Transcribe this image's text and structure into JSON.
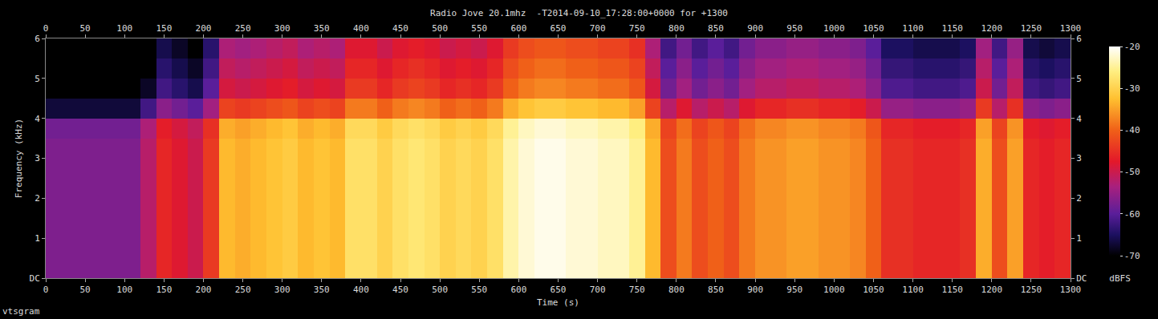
{
  "chart_data": {
    "type": "heatmap",
    "title": "Radio Jove 20.1mhz  -T2014-09-10_17:28:00+0000 for +1300",
    "x_label": "Time (s)",
    "y_label": "Frequency (kHz)",
    "annotation": "vtsgram",
    "x": [
      10,
      30,
      50,
      70,
      90,
      110,
      130,
      150,
      170,
      190,
      210,
      230,
      250,
      270,
      290,
      310,
      330,
      350,
      370,
      390,
      410,
      430,
      450,
      470,
      490,
      510,
      530,
      550,
      570,
      590,
      610,
      630,
      650,
      670,
      690,
      710,
      730,
      750,
      770,
      790,
      810,
      830,
      850,
      870,
      890,
      910,
      930,
      950,
      970,
      990,
      1010,
      1030,
      1050,
      1070,
      1090,
      1110,
      1130,
      1150,
      1170,
      1190,
      1210,
      1230,
      1250,
      1270,
      1290
    ],
    "y": [
      0.25,
      0.75,
      1.25,
      1.75,
      2.25,
      2.75,
      3.25,
      3.75,
      4.25,
      4.75,
      5.25,
      5.75
    ],
    "z": [
      [
        -57,
        -57,
        -57,
        -57,
        -57,
        -57,
        -52,
        -46,
        -48,
        -50,
        -44,
        -33,
        -34,
        -33,
        -32,
        -31,
        -33,
        -32,
        -33,
        -28,
        -28,
        -30,
        -28,
        -27,
        -28,
        -30,
        -29,
        -30,
        -28,
        -24,
        -22,
        -21,
        -21,
        -22,
        -22,
        -23,
        -23,
        -25,
        -33,
        -42,
        -38,
        -42,
        -40,
        -42,
        -38,
        -36,
        -36,
        -35,
        -35,
        -36,
        -36,
        -37,
        -40,
        -45,
        -45,
        -46,
        -46,
        -46,
        -45,
        -34,
        -42,
        -35,
        -46,
        -47,
        -46
      ],
      [
        -57,
        -57,
        -57,
        -57,
        -57,
        -57,
        -52,
        -46,
        -48,
        -50,
        -44,
        -33,
        -34,
        -33,
        -32,
        -31,
        -33,
        -32,
        -33,
        -28,
        -28,
        -30,
        -28,
        -27,
        -28,
        -30,
        -29,
        -30,
        -28,
        -24,
        -22,
        -21,
        -21,
        -22,
        -22,
        -23,
        -23,
        -25,
        -33,
        -42,
        -38,
        -42,
        -40,
        -42,
        -38,
        -36,
        -36,
        -35,
        -35,
        -36,
        -36,
        -37,
        -40,
        -45,
        -45,
        -46,
        -46,
        -46,
        -45,
        -34,
        -42,
        -35,
        -46,
        -47,
        -46
      ],
      [
        -57,
        -57,
        -57,
        -57,
        -57,
        -57,
        -52,
        -46,
        -48,
        -50,
        -44,
        -33,
        -34,
        -33,
        -32,
        -31,
        -33,
        -32,
        -33,
        -28,
        -28,
        -30,
        -28,
        -27,
        -28,
        -30,
        -29,
        -30,
        -28,
        -24,
        -22,
        -21,
        -21,
        -22,
        -22,
        -23,
        -23,
        -25,
        -33,
        -42,
        -38,
        -42,
        -40,
        -42,
        -38,
        -36,
        -36,
        -35,
        -35,
        -36,
        -36,
        -37,
        -40,
        -45,
        -45,
        -46,
        -46,
        -46,
        -45,
        -34,
        -42,
        -35,
        -46,
        -47,
        -46
      ],
      [
        -57,
        -57,
        -57,
        -57,
        -57,
        -57,
        -52,
        -46,
        -48,
        -50,
        -44,
        -33,
        -34,
        -33,
        -32,
        -31,
        -33,
        -32,
        -33,
        -28,
        -28,
        -30,
        -28,
        -27,
        -28,
        -30,
        -29,
        -30,
        -28,
        -24,
        -22,
        -21,
        -21,
        -22,
        -22,
        -23,
        -23,
        -25,
        -33,
        -42,
        -38,
        -42,
        -40,
        -42,
        -38,
        -36,
        -36,
        -35,
        -35,
        -36,
        -36,
        -37,
        -40,
        -45,
        -45,
        -46,
        -46,
        -46,
        -45,
        -34,
        -42,
        -35,
        -46,
        -47,
        -46
      ],
      [
        -57,
        -57,
        -57,
        -57,
        -57,
        -57,
        -52,
        -46,
        -48,
        -50,
        -44,
        -33,
        -34,
        -33,
        -32,
        -31,
        -33,
        -32,
        -33,
        -28,
        -28,
        -30,
        -28,
        -27,
        -28,
        -30,
        -29,
        -30,
        -28,
        -24,
        -22,
        -21,
        -21,
        -22,
        -22,
        -23,
        -23,
        -25,
        -33,
        -42,
        -38,
        -42,
        -40,
        -42,
        -38,
        -36,
        -36,
        -35,
        -35,
        -36,
        -36,
        -37,
        -40,
        -45,
        -45,
        -46,
        -46,
        -46,
        -45,
        -34,
        -42,
        -35,
        -46,
        -47,
        -46
      ],
      [
        -57,
        -57,
        -57,
        -57,
        -57,
        -57,
        -52,
        -46,
        -48,
        -50,
        -44,
        -33,
        -34,
        -33,
        -32,
        -31,
        -33,
        -32,
        -33,
        -28,
        -28,
        -30,
        -28,
        -27,
        -28,
        -30,
        -29,
        -30,
        -28,
        -24,
        -22,
        -21,
        -21,
        -22,
        -22,
        -23,
        -23,
        -25,
        -33,
        -42,
        -38,
        -42,
        -40,
        -42,
        -38,
        -36,
        -36,
        -35,
        -35,
        -36,
        -36,
        -37,
        -40,
        -45,
        -45,
        -46,
        -46,
        -46,
        -45,
        -34,
        -42,
        -35,
        -46,
        -47,
        -46
      ],
      [
        -57,
        -57,
        -57,
        -57,
        -57,
        -57,
        -52,
        -46,
        -48,
        -50,
        -44,
        -33,
        -34,
        -33,
        -32,
        -31,
        -33,
        -32,
        -33,
        -28,
        -28,
        -30,
        -28,
        -27,
        -28,
        -30,
        -29,
        -30,
        -28,
        -24,
        -22,
        -21,
        -21,
        -22,
        -22,
        -23,
        -23,
        -25,
        -33,
        -42,
        -38,
        -42,
        -40,
        -42,
        -38,
        -36,
        -36,
        -35,
        -35,
        -36,
        -36,
        -37,
        -40,
        -45,
        -45,
        -46,
        -46,
        -46,
        -45,
        -34,
        -42,
        -35,
        -46,
        -47,
        -46
      ],
      [
        -58,
        -58,
        -58,
        -58,
        -58,
        -58,
        -53,
        -47,
        -49,
        -51,
        -45,
        -34,
        -35,
        -34,
        -33,
        -32,
        -34,
        -33,
        -34,
        -29,
        -29,
        -31,
        -29,
        -28,
        -29,
        -31,
        -30,
        -31,
        -29,
        -25,
        -23,
        -22,
        -22,
        -23,
        -23,
        -24,
        -24,
        -26,
        -34,
        -43,
        -39,
        -43,
        -41,
        -43,
        -39,
        -37,
        -37,
        -36,
        -36,
        -37,
        -37,
        -38,
        -41,
        -46,
        -46,
        -47,
        -47,
        -47,
        -46,
        -35,
        -43,
        -36,
        -47,
        -48,
        -47
      ],
      [
        -67,
        -67,
        -67,
        -67,
        -67,
        -67,
        -62,
        -56,
        -58,
        -60,
        -54,
        -43,
        -44,
        -43,
        -42,
        -41,
        -43,
        -42,
        -43,
        -38,
        -38,
        -40,
        -38,
        -37,
        -38,
        -40,
        -39,
        -40,
        -38,
        -34,
        -32,
        -31,
        -31,
        -32,
        -32,
        -33,
        -33,
        -35,
        -43,
        -52,
        -48,
        -52,
        -50,
        -52,
        -48,
        -46,
        -46,
        -45,
        -45,
        -46,
        -46,
        -47,
        -50,
        -55,
        -55,
        -56,
        -56,
        -56,
        -55,
        -44,
        -52,
        -45,
        -56,
        -57,
        -56
      ],
      [
        -70,
        -70,
        -70,
        -70,
        -70,
        -70,
        -68,
        -62,
        -64,
        -66,
        -60,
        -49,
        -50,
        -49,
        -48,
        -47,
        -49,
        -48,
        -49,
        -44,
        -44,
        -46,
        -44,
        -43,
        -44,
        -46,
        -45,
        -46,
        -44,
        -40,
        -38,
        -37,
        -37,
        -38,
        -38,
        -39,
        -39,
        -41,
        -49,
        -58,
        -54,
        -58,
        -56,
        -58,
        -54,
        -52,
        -52,
        -51,
        -51,
        -52,
        -52,
        -53,
        -56,
        -61,
        -61,
        -62,
        -62,
        -62,
        -61,
        -50,
        -58,
        -51,
        -62,
        -63,
        -62
      ],
      [
        -70,
        -70,
        -70,
        -70,
        -70,
        -70,
        -70,
        -64,
        -66,
        -68,
        -62,
        -51,
        -52,
        -51,
        -50,
        -49,
        -51,
        -50,
        -51,
        -46,
        -46,
        -48,
        -46,
        -45,
        -46,
        -48,
        -47,
        -48,
        -46,
        -42,
        -40,
        -39,
        -39,
        -40,
        -40,
        -41,
        -41,
        -43,
        -51,
        -60,
        -56,
        -60,
        -58,
        -60,
        -56,
        -54,
        -54,
        -53,
        -53,
        -54,
        -54,
        -55,
        -58,
        -63,
        -63,
        -64,
        -64,
        -64,
        -63,
        -52,
        -60,
        -53,
        -64,
        -65,
        -64
      ],
      [
        -70,
        -70,
        -70,
        -70,
        -70,
        -70,
        -70,
        -66,
        -68,
        -70,
        -64,
        -53,
        -54,
        -53,
        -52,
        -51,
        -53,
        -52,
        -53,
        -48,
        -48,
        -50,
        -48,
        -47,
        -48,
        -50,
        -49,
        -50,
        -48,
        -44,
        -42,
        -41,
        -41,
        -42,
        -42,
        -43,
        -43,
        -45,
        -53,
        -62,
        -58,
        -62,
        -60,
        -62,
        -58,
        -56,
        -56,
        -55,
        -55,
        -56,
        -56,
        -57,
        -60,
        -65,
        -65,
        -66,
        -66,
        -66,
        -65,
        -54,
        -62,
        -55,
        -66,
        -67,
        -66
      ]
    ],
    "xlim": [
      0,
      1300
    ],
    "xticks": [
      0,
      50,
      100,
      150,
      200,
      250,
      300,
      350,
      400,
      450,
      500,
      550,
      600,
      650,
      700,
      750,
      800,
      850,
      900,
      950,
      1000,
      1050,
      1100,
      1150,
      1200,
      1250,
      1300
    ],
    "ylim": [
      0,
      6
    ],
    "yticks": [
      {
        "value": 0,
        "label": "DC"
      },
      1,
      2,
      3,
      4,
      5,
      6
    ],
    "colorbar": {
      "title": "dBFS",
      "range": [
        -70,
        -20
      ],
      "ticks": [
        -70,
        -60,
        -50,
        -40,
        -30,
        -20
      ]
    },
    "grid": false
  }
}
